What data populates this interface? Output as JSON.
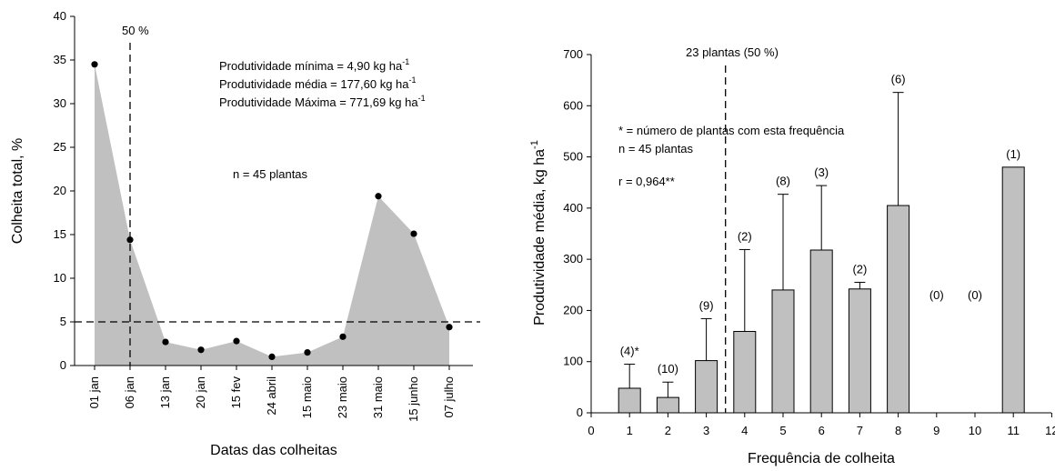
{
  "charts": {
    "left": {
      "type": "area",
      "xlabel": "Datas das colheitas",
      "ylabel": "Colheita total, %",
      "ylim": [
        0,
        40
      ],
      "yticks": [
        "0",
        "5",
        "10",
        "15",
        "20",
        "25",
        "30",
        "35",
        "40"
      ],
      "categories": [
        "01 jan",
        "06 jan",
        "13 jan",
        "20 jan",
        "15 fev",
        "24 abril",
        "15 maio",
        "23 maio",
        "31 maio",
        "15 junho",
        "07 julho"
      ],
      "values": [
        34.5,
        14.4,
        2.7,
        1.8,
        2.8,
        1.0,
        1.5,
        3.3,
        19.4,
        15.1,
        4.4
      ],
      "fill_color": "#c0c0c0",
      "vline_at_category": "06 jan",
      "vline_label": "50 %",
      "hline_value": 5,
      "annotations": {
        "min_label": "Produtividade mínima = 4,90 kg ha",
        "mean_label": "Produtividade média =   177,60 kg ha",
        "max_label": "Produtividade Máxima =  771,69 kg ha",
        "unit_exponent": "-1",
        "n_label": "n = 45 plantas"
      }
    },
    "right": {
      "type": "bar",
      "xlabel": "Frequência de colheita",
      "ylabel_main": "Produtividade média, kg ha",
      "ylabel_exponent": "-1",
      "xlim": [
        0,
        12
      ],
      "ylim": [
        0,
        700
      ],
      "xticks": [
        "0",
        "1",
        "2",
        "3",
        "4",
        "5",
        "6",
        "7",
        "8",
        "9",
        "10",
        "11",
        "12"
      ],
      "yticks": [
        "0",
        "100",
        "200",
        "300",
        "400",
        "500",
        "600",
        "700"
      ],
      "bar_color": "#c0c0c0",
      "bars": [
        {
          "x": 1,
          "value": 48,
          "error": 47,
          "count_label": "(4)*"
        },
        {
          "x": 2,
          "value": 30,
          "error": 30,
          "count_label": "(10)"
        },
        {
          "x": 3,
          "value": 102,
          "error": 82,
          "count_label": "(9)"
        },
        {
          "x": 4,
          "value": 159,
          "error": 160,
          "count_label": "(2)"
        },
        {
          "x": 5,
          "value": 240,
          "error": 187,
          "count_label": "(8)"
        },
        {
          "x": 6,
          "value": 318,
          "error": 126,
          "count_label": "(3)"
        },
        {
          "x": 7,
          "value": 242,
          "error": 13,
          "count_label": "(2)"
        },
        {
          "x": 8,
          "value": 405,
          "error": 221,
          "count_label": "(6)"
        },
        {
          "x": 9,
          "value": 0,
          "error": 0,
          "count_label": "(0)"
        },
        {
          "x": 10,
          "value": 0,
          "error": 0,
          "count_label": "(0)"
        },
        {
          "x": 11,
          "value": 480,
          "error": 0,
          "count_label": "(1)"
        }
      ],
      "vline_x": 3.5,
      "vline_label": "23 plantas (50 %)",
      "annotations": {
        "star_note": "* = número de plantas com esta frequência",
        "n_label": "n = 45 plantas",
        "r_label": "r = 0,964**"
      }
    }
  }
}
